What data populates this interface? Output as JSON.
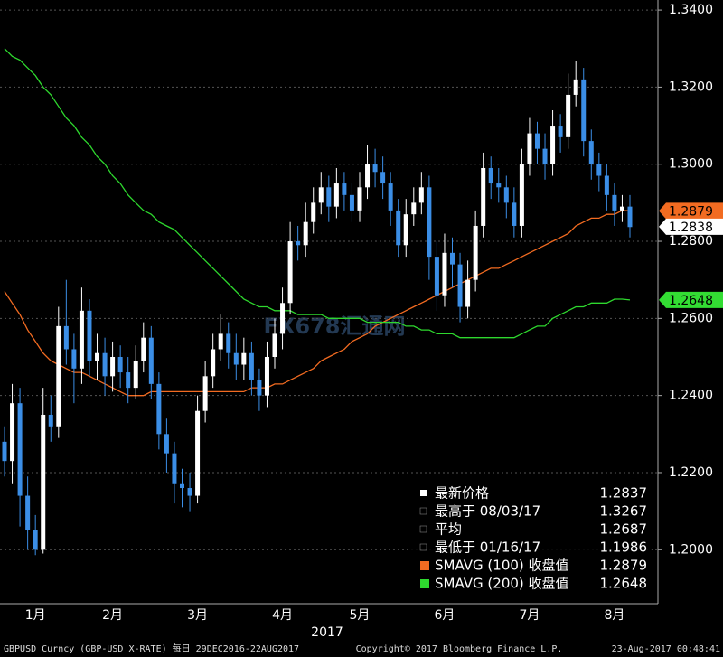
{
  "chart_data": {
    "type": "candlestick",
    "categories": [
      null,
      null,
      null,
      null,
      "1月",
      null,
      null,
      null,
      null,
      null,
      null,
      null,
      null,
      null,
      "2月",
      null,
      null,
      null,
      null,
      null,
      null,
      null,
      null,
      null,
      null,
      "3月",
      null,
      null,
      null,
      null,
      null,
      null,
      null,
      null,
      null,
      null,
      "4月",
      null,
      null,
      null,
      null,
      null,
      null,
      null,
      null,
      null,
      "5月",
      null,
      null,
      null,
      null,
      null,
      null,
      null,
      null,
      null,
      null,
      "6月",
      null,
      null,
      null,
      null,
      null,
      null,
      null,
      null,
      null,
      null,
      "7月",
      null,
      null,
      null,
      null,
      null,
      null,
      null,
      null,
      null,
      null,
      "8月",
      null,
      null
    ],
    "open": [
      1.228,
      1.223,
      1.238,
      1.214,
      1.205,
      1.2,
      1.235,
      1.232,
      1.258,
      1.252,
      1.247,
      1.262,
      1.249,
      1.251,
      1.245,
      1.25,
      1.246,
      1.242,
      1.249,
      1.255,
      1.243,
      1.23,
      1.225,
      1.217,
      1.216,
      1.214,
      1.236,
      1.245,
      1.252,
      1.256,
      1.251,
      1.248,
      1.251,
      1.244,
      1.24,
      1.25,
      1.256,
      1.264,
      1.28,
      1.279,
      1.285,
      1.29,
      1.294,
      1.289,
      1.295,
      1.292,
      1.288,
      1.294,
      1.3,
      1.298,
      1.295,
      1.288,
      1.279,
      1.287,
      1.29,
      1.294,
      1.276,
      1.266,
      1.277,
      1.274,
      1.263,
      1.27,
      1.284,
      1.299,
      1.295,
      1.294,
      1.29,
      1.284,
      1.3,
      1.308,
      1.304,
      1.3,
      1.31,
      1.307,
      1.318,
      1.322,
      1.306,
      1.3,
      1.297,
      1.292,
      1.288,
      1.289
    ],
    "high": [
      1.232,
      1.243,
      1.242,
      1.219,
      1.209,
      1.242,
      1.24,
      1.263,
      1.27,
      1.256,
      1.268,
      1.265,
      1.256,
      1.255,
      1.254,
      1.253,
      1.25,
      1.253,
      1.259,
      1.258,
      1.246,
      1.234,
      1.228,
      1.221,
      1.22,
      1.24,
      1.249,
      1.256,
      1.261,
      1.259,
      1.256,
      1.255,
      1.254,
      1.247,
      1.254,
      1.26,
      1.268,
      1.285,
      1.284,
      1.29,
      1.294,
      1.298,
      1.297,
      1.299,
      1.298,
      1.295,
      1.298,
      1.305,
      1.304,
      1.302,
      1.298,
      1.291,
      1.291,
      1.294,
      1.298,
      1.297,
      1.28,
      1.282,
      1.281,
      1.277,
      1.275,
      1.288,
      1.303,
      1.302,
      1.299,
      1.297,
      1.294,
      1.304,
      1.312,
      1.311,
      1.308,
      1.314,
      1.313,
      1.3235,
      1.3267,
      1.325,
      1.309,
      1.303,
      1.3,
      1.295,
      1.292,
      1.292
    ],
    "low": [
      1.219,
      1.217,
      1.206,
      1.2,
      1.1986,
      1.199,
      1.228,
      1.229,
      1.248,
      1.238,
      1.243,
      1.245,
      1.244,
      1.24,
      1.241,
      1.242,
      1.238,
      1.239,
      1.246,
      1.239,
      1.226,
      1.22,
      1.212,
      1.211,
      1.21,
      1.212,
      1.233,
      1.242,
      1.249,
      1.247,
      1.244,
      1.244,
      1.24,
      1.236,
      1.237,
      1.247,
      1.252,
      1.261,
      1.275,
      1.276,
      1.282,
      1.287,
      1.285,
      1.286,
      1.288,
      1.285,
      1.285,
      1.291,
      1.294,
      1.291,
      1.284,
      1.276,
      1.276,
      1.284,
      1.287,
      1.27,
      1.262,
      1.263,
      1.268,
      1.259,
      1.26,
      1.267,
      1.281,
      1.291,
      1.29,
      1.286,
      1.281,
      1.281,
      1.297,
      1.3,
      1.296,
      1.297,
      1.303,
      1.304,
      1.315,
      1.302,
      1.296,
      1.293,
      1.288,
      1.284,
      1.285,
      1.281
    ],
    "close": [
      1.223,
      1.238,
      1.214,
      1.205,
      1.2,
      1.235,
      1.232,
      1.258,
      1.252,
      1.247,
      1.262,
      1.249,
      1.251,
      1.245,
      1.25,
      1.246,
      1.242,
      1.249,
      1.255,
      1.243,
      1.23,
      1.225,
      1.217,
      1.216,
      1.214,
      1.236,
      1.245,
      1.252,
      1.256,
      1.251,
      1.248,
      1.251,
      1.244,
      1.24,
      1.25,
      1.256,
      1.264,
      1.28,
      1.279,
      1.285,
      1.29,
      1.294,
      1.289,
      1.295,
      1.292,
      1.288,
      1.294,
      1.3,
      1.298,
      1.295,
      1.288,
      1.279,
      1.287,
      1.29,
      1.294,
      1.276,
      1.266,
      1.277,
      1.274,
      1.263,
      1.27,
      1.284,
      1.299,
      1.295,
      1.294,
      1.29,
      1.284,
      1.3,
      1.308,
      1.304,
      1.3,
      1.31,
      1.307,
      1.318,
      1.322,
      1.306,
      1.3,
      1.297,
      1.292,
      1.288,
      1.289,
      1.2837
    ],
    "up_color": "#ffffff",
    "down_color": "#3b8ee6",
    "series": [
      {
        "name": "SMAVG (100) 收盘值",
        "color": "#f26b21",
        "values": [
          1.267,
          1.264,
          1.261,
          1.257,
          1.254,
          1.251,
          1.249,
          1.248,
          1.247,
          1.246,
          1.246,
          1.245,
          1.244,
          1.243,
          1.242,
          1.241,
          1.24,
          1.24,
          1.24,
          1.241,
          1.241,
          1.241,
          1.241,
          1.241,
          1.241,
          1.241,
          1.241,
          1.241,
          1.241,
          1.241,
          1.241,
          1.241,
          1.242,
          1.242,
          1.242,
          1.243,
          1.243,
          1.244,
          1.245,
          1.246,
          1.247,
          1.249,
          1.25,
          1.251,
          1.252,
          1.254,
          1.255,
          1.256,
          1.258,
          1.259,
          1.26,
          1.261,
          1.262,
          1.263,
          1.264,
          1.265,
          1.266,
          1.267,
          1.268,
          1.269,
          1.27,
          1.271,
          1.272,
          1.273,
          1.273,
          1.274,
          1.275,
          1.276,
          1.277,
          1.278,
          1.279,
          1.28,
          1.281,
          1.282,
          1.284,
          1.285,
          1.286,
          1.286,
          1.287,
          1.287,
          1.288,
          1.2879
        ]
      },
      {
        "name": "SMAVG (200) 收盘值",
        "color": "#2ed82e",
        "values": [
          1.33,
          1.328,
          1.327,
          1.325,
          1.323,
          1.32,
          1.318,
          1.315,
          1.312,
          1.31,
          1.307,
          1.305,
          1.302,
          1.3,
          1.297,
          1.295,
          1.292,
          1.29,
          1.288,
          1.287,
          1.285,
          1.284,
          1.283,
          1.281,
          1.279,
          1.277,
          1.275,
          1.273,
          1.271,
          1.269,
          1.267,
          1.265,
          1.264,
          1.263,
          1.263,
          1.262,
          1.262,
          1.262,
          1.261,
          1.261,
          1.261,
          1.261,
          1.26,
          1.26,
          1.26,
          1.26,
          1.26,
          1.259,
          1.259,
          1.259,
          1.259,
          1.259,
          1.258,
          1.258,
          1.257,
          1.257,
          1.256,
          1.256,
          1.256,
          1.255,
          1.255,
          1.255,
          1.255,
          1.255,
          1.255,
          1.255,
          1.255,
          1.256,
          1.257,
          1.258,
          1.258,
          1.26,
          1.261,
          1.262,
          1.263,
          1.263,
          1.264,
          1.264,
          1.264,
          1.265,
          1.265,
          1.2648
        ]
      }
    ],
    "ylim": [
      1.186,
      1.3426
    ],
    "yticks": [
      {
        "value": 1.2,
        "label": "1.2000"
      },
      {
        "value": 1.22,
        "label": "1.2200"
      },
      {
        "value": 1.24,
        "label": "1.2400"
      },
      {
        "value": 1.26,
        "label": "1.2600"
      },
      {
        "value": 1.28,
        "label": "1.2800"
      },
      {
        "value": 1.3,
        "label": "1.3000"
      },
      {
        "value": 1.32,
        "label": "1.3200"
      },
      {
        "value": 1.34,
        "label": "1.3400"
      }
    ],
    "grid": true,
    "badges": [
      {
        "value": 1.2879,
        "color": "#f26b21"
      },
      {
        "value": 1.2838,
        "color": "#ffffff"
      },
      {
        "value": 1.2648,
        "color": "#33dd33"
      }
    ],
    "legend": [
      {
        "label": "最新价格",
        "value": 1.2837
      },
      {
        "label": "最高于 08/03/17",
        "value": 1.3267
      },
      {
        "label": "平均",
        "value": 1.2687
      },
      {
        "label": "最低于 01/16/17",
        "value": 1.1986
      }
    ],
    "x_group_label": "2017",
    "watermark": "FX678汇通网",
    "footer": {
      "left": "GBPUSD Curncy (GBP-USD X-RATE)  每日 29DEC2016-22AUG2017",
      "center": "Copyright© 2017 Bloomberg Finance L.P.",
      "right": "23-Aug-2017 00:48:41"
    }
  }
}
